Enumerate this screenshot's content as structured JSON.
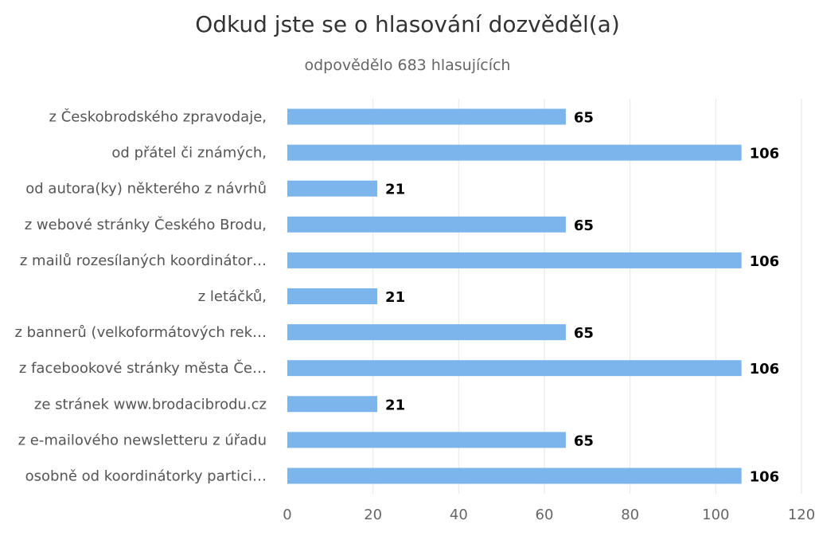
{
  "chart_data": {
    "type": "bar",
    "orientation": "horizontal",
    "title": "Odkud jste se o hlasování dozvěděl(a)",
    "subtitle": "odpovědělo 683 hlasujících",
    "categories": [
      "z Českobrodského zpravodaje,",
      "od přátel či známých,",
      "od autora(ky) některého z návrhů",
      "z webové stránky Českého Brodu,",
      "z mailů rozesílaných koordinátor…",
      "z letáčků,",
      "z bannerů (velkoformátových rek…",
      "z facebookové stránky města Če…",
      "ze stránek www.brodacibrodu.cz",
      "z e-mailového newsletteru z úřadu",
      "osobně od koordinátorky partici…"
    ],
    "values": [
      65,
      106,
      21,
      65,
      106,
      21,
      65,
      106,
      21,
      65,
      106
    ],
    "xlim": [
      0,
      120
    ],
    "x_ticks": [
      "0",
      "20",
      "40",
      "60",
      "80",
      "100",
      "120"
    ],
    "grid": true,
    "bar_color": "#7cb5ec",
    "data_labels": true
  }
}
